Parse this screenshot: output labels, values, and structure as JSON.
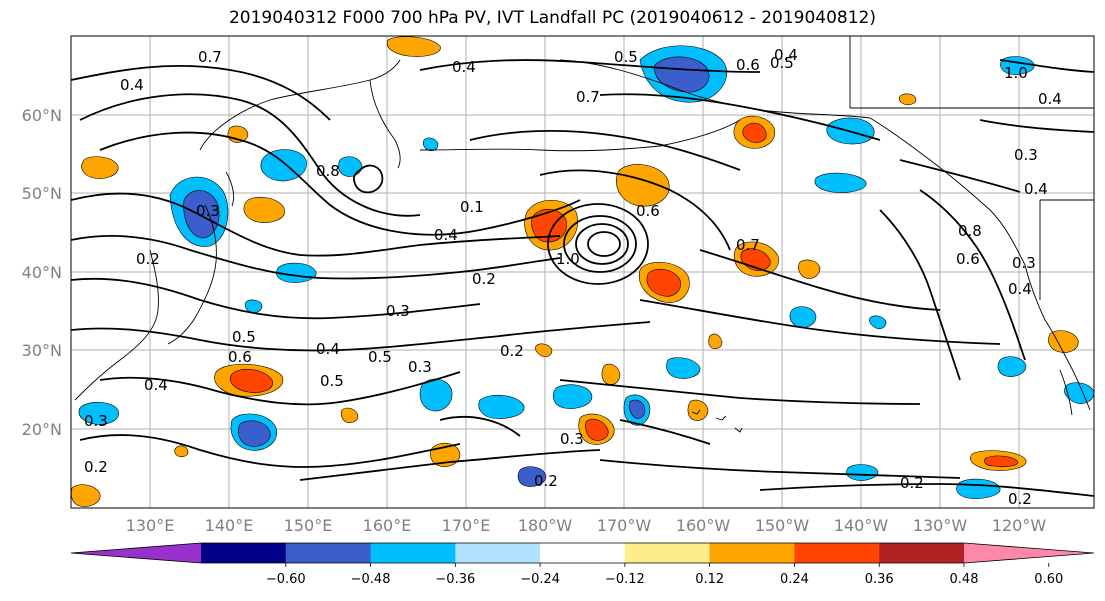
{
  "title": "2019040312 F000 700 hPa PV, IVT Landfall PC (2019040612 - 2019040812)",
  "latitude_labels": [
    "60°N",
    "50°N",
    "40°N",
    "30°N",
    "20°N"
  ],
  "longitude_labels": [
    "130°E",
    "140°E",
    "150°E",
    "160°E",
    "170°E",
    "180°W",
    "170°W",
    "160°W",
    "150°W",
    "140°W",
    "130°W",
    "120°W"
  ],
  "contour_labels": [
    "0.7",
    "0.4",
    "0.4",
    "0.5",
    "0.6",
    "0.5",
    "0.4",
    "0.7",
    "0.4",
    "1.0",
    "0.8",
    "0.3",
    "0.2",
    "0.4",
    "0.3",
    "0.8",
    "0.6",
    "0.3",
    "0.4",
    "0.2",
    "0.5",
    "0.6",
    "0.4",
    "0.5",
    "0.3",
    "0.5",
    "0.4",
    "0.2",
    "1.0",
    "0.6",
    "0.7",
    "0.3",
    "0.3",
    "0.2",
    "0.2",
    "0.2",
    "0.2",
    "0.3",
    "0.4",
    "0.1"
  ],
  "colorbar": {
    "colors": [
      "#9932CC",
      "#00008B",
      "#3A5FCD",
      "#00BFFF",
      "#B0E2FF",
      "#FFFFFF",
      "#FFEC8B",
      "#FFA500",
      "#FF4500",
      "#B22222",
      "#FF88AA"
    ],
    "tick_labels": [
      "−0.60",
      "−0.48",
      "−0.36",
      "−0.24",
      "−0.12",
      "0.12",
      "0.24",
      "0.36",
      "0.48",
      "0.60"
    ]
  }
}
